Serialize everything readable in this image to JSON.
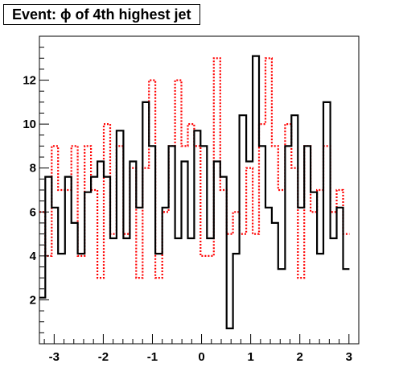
{
  "title": "Event: ϕ of 4th highest jet",
  "chart_data": {
    "type": "histogram-step",
    "xlim": [
      -3.3,
      3.2
    ],
    "ylim": [
      0,
      14
    ],
    "x_ticks": [
      -3,
      -2,
      -1,
      0,
      1,
      2,
      3
    ],
    "y_ticks": [
      2,
      4,
      6,
      8,
      10,
      12
    ],
    "grid": false,
    "bin_edges": [
      -3.3,
      -3.18,
      -3.05,
      -2.92,
      -2.78,
      -2.65,
      -2.52,
      -2.38,
      -2.25,
      -2.12,
      -1.99,
      -1.86,
      -1.73,
      -1.59,
      -1.46,
      -1.33,
      -1.2,
      -1.07,
      -0.94,
      -0.8,
      -0.67,
      -0.54,
      -0.41,
      -0.28,
      -0.15,
      -0.02,
      0.11,
      0.25,
      0.38,
      0.51,
      0.64,
      0.77,
      0.91,
      1.04,
      1.17,
      1.3,
      1.43,
      1.56,
      1.7,
      1.83,
      1.96,
      2.09,
      2.22,
      2.35,
      2.48,
      2.62,
      2.75,
      2.88,
      3.01,
      3.14
    ],
    "series": [
      {
        "color": "#000000",
        "line_style": "solid",
        "values": [
          2.1,
          7.6,
          6.2,
          4.1,
          7.6,
          5.5,
          4.1,
          6.9,
          7.6,
          8.3,
          7.6,
          4.8,
          9.7,
          4.8,
          8.3,
          6.2,
          11.0,
          9.0,
          4.1,
          6.2,
          9.0,
          4.8,
          8.3,
          4.8,
          9.7,
          9.0,
          4.8,
          8.3,
          7.6,
          0.7,
          4.1,
          10.4,
          8.3,
          13.1,
          9.0,
          6.2,
          5.5,
          3.4,
          9.0,
          10.4,
          6.2,
          9.0,
          6.9,
          4.1,
          11.0,
          4.8,
          6.2,
          3.4
        ]
      },
      {
        "color": "#ff0000",
        "line_style": "dotted",
        "values": [
          6.0,
          4.0,
          9.0,
          7.0,
          7.0,
          9.0,
          4.0,
          9.0,
          7.0,
          3.0,
          10.0,
          5.0,
          9.0,
          5.0,
          8.0,
          3.0,
          8.0,
          12.0,
          3.0,
          6.0,
          9.0,
          12.0,
          9.0,
          10.0,
          9.0,
          4.0,
          4.0,
          13.0,
          7.0,
          5.0,
          6.0,
          5.0,
          8.0,
          5.0,
          10.0,
          13.0,
          9.0,
          7.0,
          10.0,
          8.0,
          3.0,
          9.0,
          6.0,
          7.0,
          9.0,
          6.0,
          7.0,
          5.0
        ]
      }
    ]
  }
}
